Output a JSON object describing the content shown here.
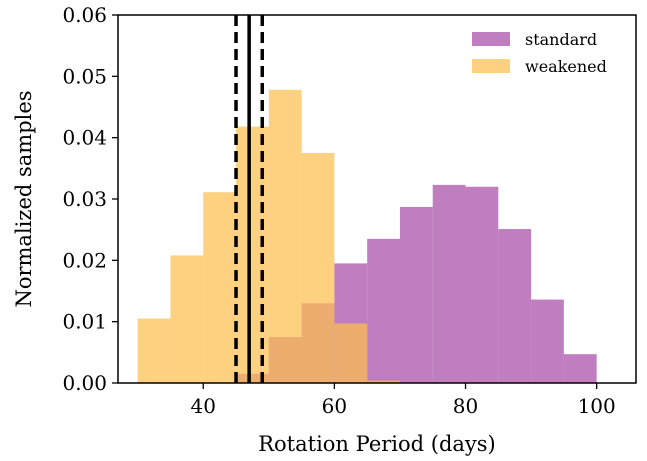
{
  "chart_data": {
    "type": "bar",
    "xlabel": "Rotation Period (days)",
    "ylabel": "Normalized samples",
    "xlim": [
      27,
      106
    ],
    "ylim": [
      0,
      0.06
    ],
    "x_ticks": [
      40,
      60,
      80,
      100
    ],
    "x_tick_labels": [
      "40",
      "60",
      "80",
      "100"
    ],
    "y_ticks": [
      0,
      0.01,
      0.02,
      0.03,
      0.04,
      0.05,
      0.06
    ],
    "y_tick_labels": [
      "0.00",
      "0.01",
      "0.02",
      "0.03",
      "0.04",
      "0.05",
      "0.06"
    ],
    "grid": false,
    "legend_position": "top-right",
    "series": [
      {
        "name": "standard",
        "color": "#a64ca6",
        "opacity": 0.72,
        "bin_edges": [
          45,
          50,
          55,
          60,
          65,
          70,
          75,
          80,
          85,
          90,
          95,
          100
        ],
        "values": [
          0.0015,
          0.0075,
          0.013,
          0.0195,
          0.0235,
          0.0287,
          0.0323,
          0.032,
          0.0251,
          0.0136,
          0.0047
        ]
      },
      {
        "name": "weakened",
        "color": "#fdbf50",
        "opacity": 0.72,
        "bin_edges": [
          30,
          35,
          40,
          45,
          50,
          55,
          60,
          65,
          70
        ],
        "values": [
          0.0105,
          0.0208,
          0.0311,
          0.0418,
          0.0478,
          0.0375,
          0.0097,
          0.0004
        ]
      }
    ],
    "annotations": [
      {
        "type": "vline",
        "x": 47,
        "style": "solid",
        "color": "#000000"
      },
      {
        "type": "vline",
        "x": 45,
        "style": "dashed",
        "color": "#000000"
      },
      {
        "type": "vline",
        "x": 49,
        "style": "dashed",
        "color": "#000000"
      }
    ]
  }
}
